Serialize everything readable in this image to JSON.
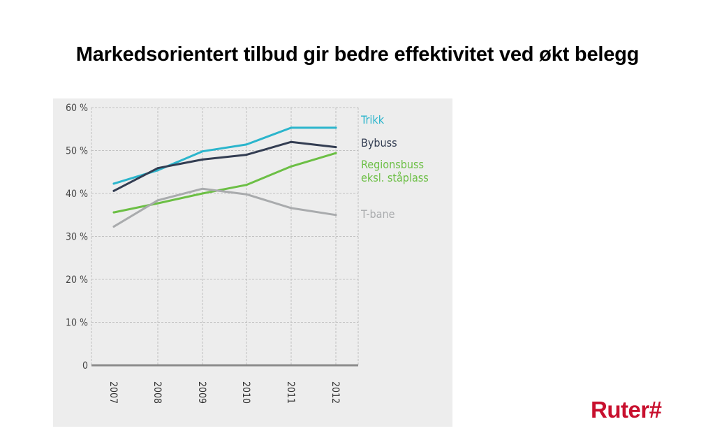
{
  "slide": {
    "title": "Markedsorientert tilbud gir bedre effektivitet ved økt belegg"
  },
  "brand": {
    "logo_text": "Ruter#",
    "color": "#c8102e"
  },
  "chart_data": {
    "type": "line",
    "title": "",
    "xlabel": "",
    "ylabel": "",
    "x": [
      "2007",
      "2008",
      "2009",
      "2010",
      "2011",
      "2012"
    ],
    "ylim": [
      0,
      60
    ],
    "y_ticks": [
      {
        "value": 0,
        "label": "0"
      },
      {
        "value": 10,
        "label": "10 %"
      },
      {
        "value": 20,
        "label": "20 %"
      },
      {
        "value": 30,
        "label": "30 %"
      },
      {
        "value": 40,
        "label": "40 %"
      },
      {
        "value": 50,
        "label": "50 %"
      },
      {
        "value": 60,
        "label": "60 %"
      }
    ],
    "grid": true,
    "legend": "right, labels beside line ends",
    "series": [
      {
        "name": "Trikk",
        "label_lines": [
          "Trikk"
        ],
        "color": "#2bb5cc",
        "values": [
          42.3,
          45.4,
          49.8,
          51.4,
          55.3,
          55.3
        ]
      },
      {
        "name": "Bybuss",
        "label_lines": [
          "Bybuss"
        ],
        "color": "#333d52",
        "values": [
          40.6,
          45.9,
          47.9,
          49.0,
          52.0,
          50.8
        ]
      },
      {
        "name": "Regionsbuss eksl. ståplass",
        "label_lines": [
          "Regionsbuss",
          "eksl. ståplass"
        ],
        "color": "#6cbf45",
        "values": [
          35.6,
          37.7,
          40.0,
          42.0,
          46.3,
          49.4
        ]
      },
      {
        "name": "T-bane",
        "label_lines": [
          "T-bane"
        ],
        "color": "#a9abad",
        "values": [
          32.3,
          38.4,
          41.1,
          39.8,
          36.6,
          35.0
        ]
      }
    ]
  }
}
